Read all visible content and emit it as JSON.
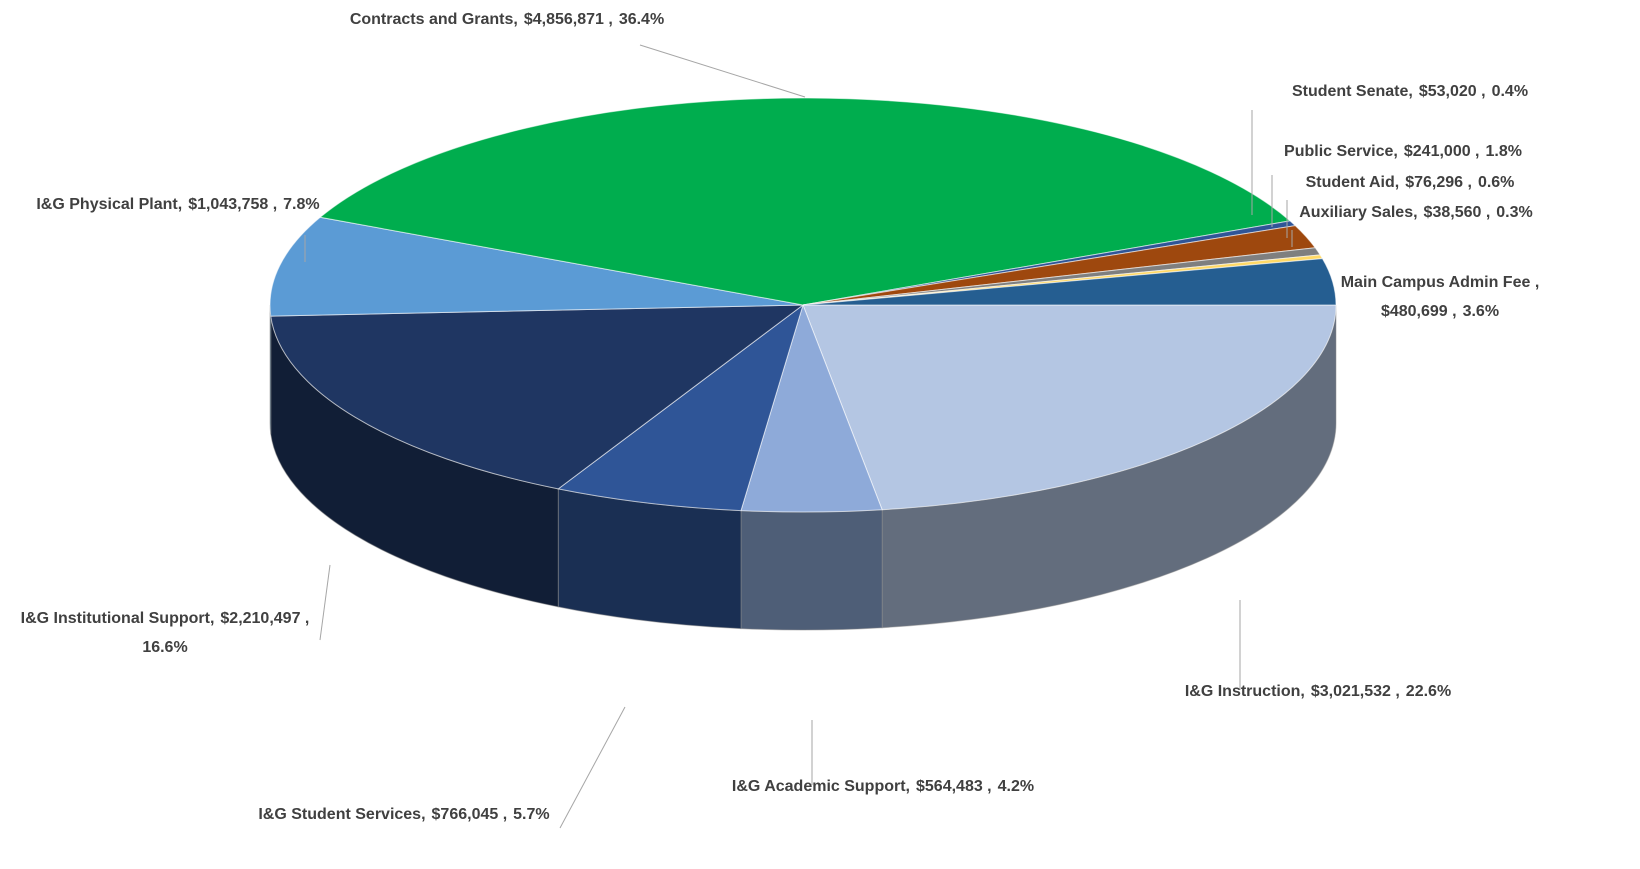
{
  "chart_data": {
    "type": "pie3d",
    "categories": [
      "I&G Instruction,",
      "I&G Academic Support,",
      "I&G Student Services,",
      "I&G Institutional Support,",
      "I&G Physical Plant,",
      "Contracts and Grants,",
      "Student Senate,",
      "Public Service,",
      "Student Aid,",
      "Auxiliary Sales,",
      "Main Campus Admin Fee ,"
    ],
    "values": [
      3021532,
      564483,
      766045,
      2210497,
      1043758,
      4856871,
      53020,
      241000,
      76296,
      38560,
      480699
    ],
    "value_labels": [
      "$3,021,532 ,",
      "$564,483 ,",
      "$766,045 ,",
      "$2,210,497 ,",
      "$1,043,758 ,",
      "$4,856,871 ,",
      "$53,020 ,",
      "$241,000 ,",
      "$76,296 ,",
      "$38,560 ,",
      "$480,699 ,"
    ],
    "percents": [
      22.6,
      4.2,
      5.7,
      16.6,
      7.8,
      36.4,
      0.4,
      1.8,
      0.6,
      0.3,
      3.6
    ],
    "percent_labels": [
      "22.6%",
      "4.2%",
      "5.7%",
      "16.6%",
      "7.8%",
      "36.4%",
      "0.4%",
      "1.8%",
      "0.6%",
      "0.3%",
      "3.6%"
    ],
    "colors": [
      "#b4c6e3",
      "#8eaad9",
      "#2f5597",
      "#1f3662",
      "#5b9bd5",
      "#00ad4e",
      "#2f5597",
      "#9e480e",
      "#7f7f7f",
      "#ffd966",
      "#255e91"
    ]
  }
}
